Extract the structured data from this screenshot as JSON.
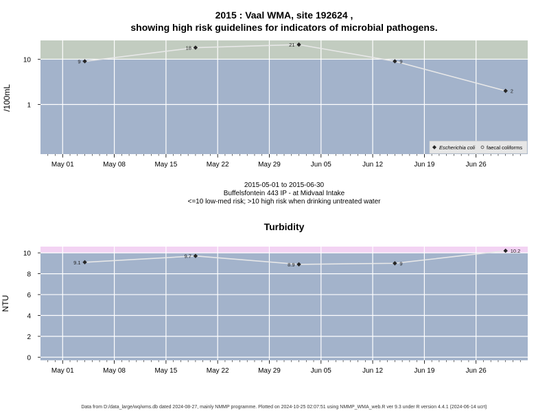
{
  "chart_data": [
    {
      "type": "line",
      "title": "2015 : Vaal WMA, site 192624 ,",
      "subtitle": "showing high risk guidelines for indicators of microbial pathogens.",
      "ylabel": "/100mL",
      "y_scale": "log",
      "y_ticks": [
        "1",
        "10"
      ],
      "x_ticks": [
        "May 01",
        "May 08",
        "May 15",
        "May 22",
        "May 29",
        "Jun 05",
        "Jun 12",
        "Jun 19",
        "Jun 26"
      ],
      "x_range": [
        "2015-04-28",
        "2015-07-03"
      ],
      "y_range": [
        0.08,
        26
      ],
      "guideline": 10,
      "bands": {
        "low_risk": "#a3b3cb",
        "high_risk": "#c2ccc0"
      },
      "grid": true,
      "series": [
        {
          "name": "Escherichia coli",
          "marker": "filled-diamond",
          "points": [
            {
              "x": "2015-05-04",
              "y": 9,
              "label": "9"
            },
            {
              "x": "2015-05-19",
              "y": 18,
              "label": "18"
            },
            {
              "x": "2015-06-02",
              "y": 21,
              "label": "21"
            },
            {
              "x": "2015-06-15",
              "y": 9,
              "label": "9"
            },
            {
              "x": "2015-06-30",
              "y": 2,
              "label": "2"
            }
          ]
        },
        {
          "name": "faecal coliforms",
          "marker": "open-circle",
          "points": []
        }
      ],
      "legend_position": "bottom-right",
      "caption_lines": [
        "2015-05-01 to 2015-06-30",
        "Buffelsfontein 443 IP - at Midvaal Intake",
        "<=10 low-med risk; >10 high risk when drinking untreated water"
      ]
    },
    {
      "type": "line",
      "title": "Turbidity",
      "ylabel": "NTU",
      "y_scale": "linear",
      "y_ticks": [
        "0",
        "2",
        "4",
        "6",
        "8",
        "10"
      ],
      "x_ticks": [
        "May 01",
        "May 08",
        "May 15",
        "May 22",
        "May 29",
        "Jun 05",
        "Jun 12",
        "Jun 19",
        "Jun 26"
      ],
      "x_range": [
        "2015-04-28",
        "2015-07-03"
      ],
      "y_range": [
        -0.3,
        10.6
      ],
      "guideline": 10,
      "bands": {
        "low_risk": "#a3b3cb",
        "high_risk": "#f3d3f3"
      },
      "grid": true,
      "series": [
        {
          "marker": "filled-diamond",
          "points": [
            {
              "x": "2015-05-04",
              "y": 9.1,
              "label": "9.1"
            },
            {
              "x": "2015-05-19",
              "y": 9.7,
              "label": "9.7"
            },
            {
              "x": "2015-06-02",
              "y": 8.9,
              "label": "8.9"
            },
            {
              "x": "2015-06-15",
              "y": 9,
              "label": "9"
            },
            {
              "x": "2015-06-30",
              "y": 10.2,
              "label": "10.2"
            }
          ]
        }
      ]
    }
  ],
  "footer": "Data from D:/data_large/wq/wms.db dated 2024-08-27, mainly NMMP programme. Plotted on 2024-10-25 02:07:51 using NMMP_WMA_web.R ver 9.3 under R version 4.4.1 (2024-06-14 ucrt)"
}
